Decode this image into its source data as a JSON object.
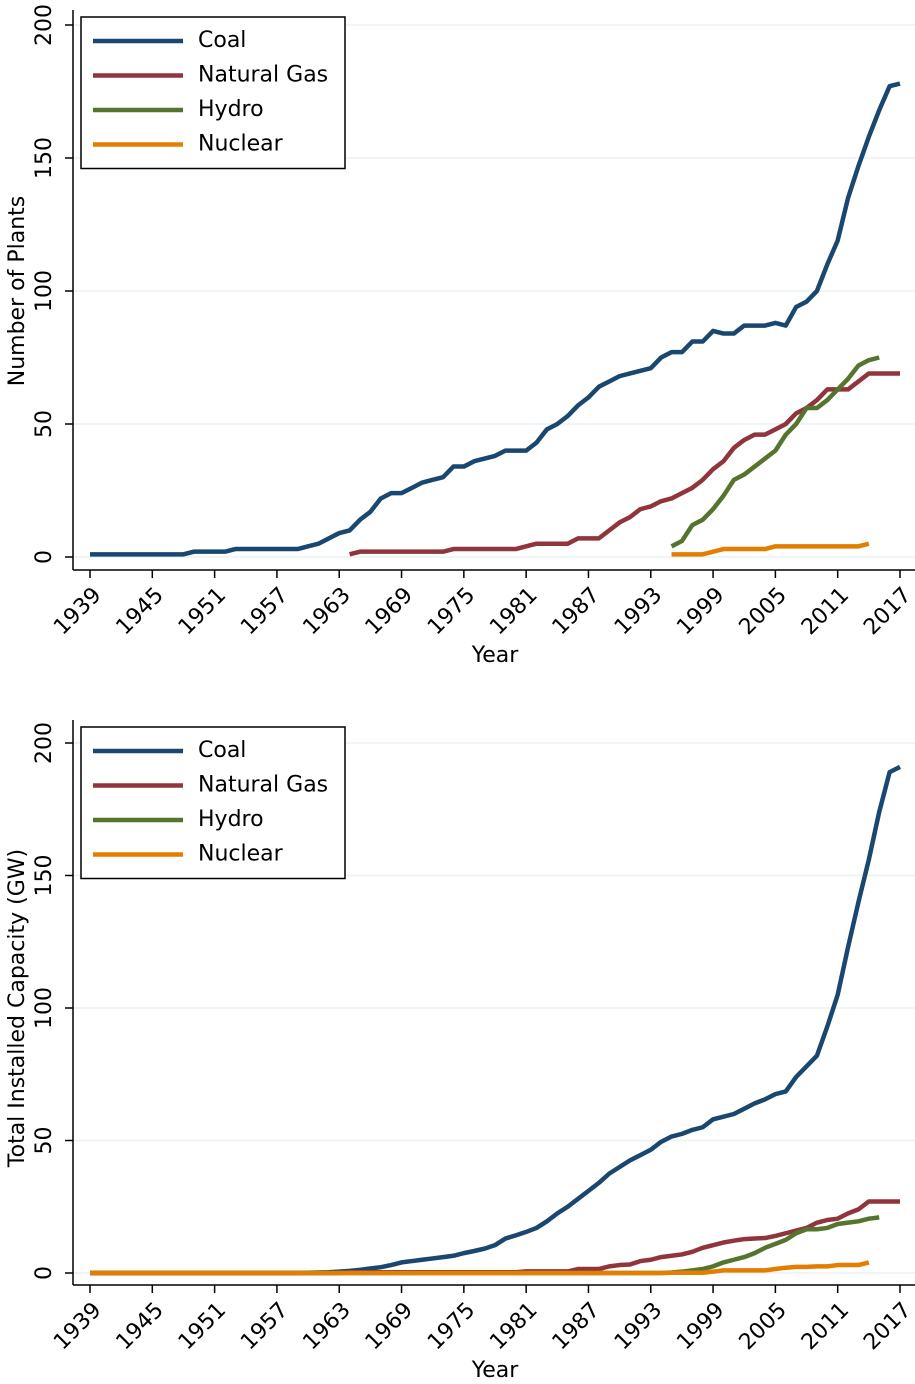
{
  "chart_data": [
    {
      "type": "line",
      "ylabel": "Number of Plants",
      "xlabel": "Year",
      "legend": "upper left",
      "grid": true,
      "xlim": [
        1939,
        2017
      ],
      "xticks": [
        1939,
        1945,
        1951,
        1957,
        1963,
        1969,
        1975,
        1981,
        1987,
        1993,
        1999,
        2005,
        2011,
        2017
      ],
      "ylim": [
        0,
        200
      ],
      "yticks": [
        0,
        50,
        100,
        150,
        200
      ],
      "x": [
        1939,
        1940,
        1941,
        1942,
        1943,
        1944,
        1945,
        1946,
        1947,
        1948,
        1949,
        1950,
        1951,
        1952,
        1953,
        1954,
        1955,
        1956,
        1957,
        1958,
        1959,
        1960,
        1961,
        1962,
        1963,
        1964,
        1965,
        1966,
        1967,
        1968,
        1969,
        1970,
        1971,
        1972,
        1973,
        1974,
        1975,
        1976,
        1977,
        1978,
        1979,
        1980,
        1981,
        1982,
        1983,
        1984,
        1985,
        1986,
        1987,
        1988,
        1989,
        1990,
        1991,
        1992,
        1993,
        1994,
        1995,
        1996,
        1997,
        1998,
        1999,
        2000,
        2001,
        2002,
        2003,
        2004,
        2005,
        2006,
        2007,
        2008,
        2009,
        2010,
        2011,
        2012,
        2013,
        2014,
        2015,
        2016,
        2017
      ],
      "series": [
        {
          "name": "Coal",
          "color": "#1a476f",
          "values": [
            1,
            1,
            1,
            1,
            1,
            1,
            1,
            1,
            1,
            1,
            2,
            2,
            2,
            2,
            3,
            3,
            3,
            3,
            3,
            3,
            3,
            4,
            5,
            7,
            9,
            10,
            14,
            17,
            22,
            24,
            24,
            26,
            28,
            29,
            30,
            34,
            34,
            36,
            37,
            38,
            40,
            40,
            40,
            43,
            48,
            50,
            53,
            57,
            60,
            64,
            66,
            68,
            69,
            70,
            71,
            75,
            77,
            77,
            81,
            81,
            85,
            84,
            84,
            87,
            87,
            87,
            88,
            87,
            94,
            96,
            100,
            110,
            119,
            135,
            147,
            158,
            168,
            177,
            178
          ]
        },
        {
          "name": "Natural Gas",
          "color": "#90353b",
          "values": [
            null,
            null,
            null,
            null,
            null,
            null,
            null,
            null,
            null,
            null,
            null,
            null,
            null,
            null,
            null,
            null,
            null,
            null,
            null,
            null,
            null,
            null,
            null,
            null,
            null,
            1,
            2,
            2,
            2,
            2,
            2,
            2,
            2,
            2,
            2,
            3,
            3,
            3,
            3,
            3,
            3,
            3,
            4,
            5,
            5,
            5,
            5,
            7,
            7,
            7,
            10,
            13,
            15,
            18,
            19,
            21,
            22,
            24,
            26,
            29,
            33,
            36,
            41,
            44,
            46,
            46,
            48,
            50,
            54,
            56,
            59,
            63,
            63,
            63,
            66,
            69,
            69,
            69,
            69
          ]
        },
        {
          "name": "Hydro",
          "color": "#55752f",
          "values": [
            null,
            null,
            null,
            null,
            null,
            null,
            null,
            null,
            null,
            null,
            null,
            null,
            null,
            null,
            null,
            null,
            null,
            null,
            null,
            null,
            null,
            null,
            null,
            null,
            null,
            null,
            null,
            null,
            null,
            null,
            null,
            null,
            null,
            null,
            null,
            null,
            null,
            null,
            null,
            null,
            null,
            null,
            null,
            null,
            null,
            null,
            null,
            null,
            null,
            null,
            null,
            null,
            null,
            null,
            null,
            null,
            4,
            6,
            12,
            14,
            18,
            23,
            29,
            31,
            34,
            37,
            40,
            46,
            50,
            56,
            56,
            59,
            63,
            67,
            72,
            74,
            75,
            null,
            null
          ]
        },
        {
          "name": "Nuclear",
          "color": "#e37e00",
          "values": [
            null,
            null,
            null,
            null,
            null,
            null,
            null,
            null,
            null,
            null,
            null,
            null,
            null,
            null,
            null,
            null,
            null,
            null,
            null,
            null,
            null,
            null,
            null,
            null,
            null,
            null,
            null,
            null,
            null,
            null,
            null,
            null,
            null,
            null,
            null,
            null,
            null,
            null,
            null,
            null,
            null,
            null,
            null,
            null,
            null,
            null,
            null,
            null,
            null,
            null,
            null,
            null,
            null,
            null,
            null,
            null,
            1,
            1,
            1,
            1,
            2,
            3,
            3,
            3,
            3,
            3,
            4,
            4,
            4,
            4,
            4,
            4,
            4,
            4,
            4,
            5,
            null,
            null,
            null
          ]
        }
      ]
    },
    {
      "type": "line",
      "ylabel": "Total Installed Capacity (GW)",
      "xlabel": "Year",
      "legend": "upper left",
      "grid": true,
      "xlim": [
        1939,
        2017
      ],
      "xticks": [
        1939,
        1945,
        1951,
        1957,
        1963,
        1969,
        1975,
        1981,
        1987,
        1993,
        1999,
        2005,
        2011,
        2017
      ],
      "ylim": [
        0,
        200
      ],
      "yticks": [
        0,
        50,
        100,
        150,
        200
      ],
      "x": [
        1939,
        1940,
        1941,
        1942,
        1943,
        1944,
        1945,
        1946,
        1947,
        1948,
        1949,
        1950,
        1951,
        1952,
        1953,
        1954,
        1955,
        1956,
        1957,
        1958,
        1959,
        1960,
        1961,
        1962,
        1963,
        1964,
        1965,
        1966,
        1967,
        1968,
        1969,
        1970,
        1971,
        1972,
        1973,
        1974,
        1975,
        1976,
        1977,
        1978,
        1979,
        1980,
        1981,
        1982,
        1983,
        1984,
        1985,
        1986,
        1987,
        1988,
        1989,
        1990,
        1991,
        1992,
        1993,
        1994,
        1995,
        1996,
        1997,
        1998,
        1999,
        2000,
        2001,
        2002,
        2003,
        2004,
        2005,
        2006,
        2007,
        2008,
        2009,
        2010,
        2011,
        2012,
        2013,
        2014,
        2015,
        2016,
        2017
      ],
      "series": [
        {
          "name": "Coal",
          "color": "#1a476f",
          "values": [
            0,
            0,
            0,
            0,
            0,
            0,
            0,
            0,
            0,
            0,
            0,
            0,
            0,
            0,
            0,
            0,
            0,
            0,
            0,
            0,
            0,
            0.1,
            0.2,
            0.3,
            0.5,
            0.8,
            1.2,
            1.7,
            2.2,
            3,
            4,
            4.5,
            5,
            5.5,
            6,
            6.5,
            7.5,
            8.3,
            9.2,
            10.5,
            13,
            14.2,
            15.5,
            17,
            19.5,
            22.5,
            25,
            28,
            31,
            34,
            37.5,
            40,
            42.5,
            44.5,
            46.5,
            49.5,
            51.5,
            52.5,
            54,
            55,
            58,
            59,
            60,
            62,
            64,
            65.5,
            67.5,
            68.5,
            74,
            78,
            82,
            93,
            105,
            123,
            140,
            156,
            174,
            189,
            191
          ]
        },
        {
          "name": "Natural Gas",
          "color": "#90353b",
          "values": [
            0,
            0,
            0,
            0,
            0,
            0,
            0,
            0,
            0,
            0,
            0,
            0,
            0,
            0,
            0,
            0,
            0,
            0,
            0,
            0,
            0,
            0,
            0,
            0,
            0,
            0.3,
            0.3,
            0.3,
            0.3,
            0.3,
            0.3,
            0.3,
            0.3,
            0.3,
            0.3,
            0.3,
            0.3,
            0.3,
            0.3,
            0.3,
            0.3,
            0.3,
            0.6,
            0.6,
            0.6,
            0.6,
            0.6,
            1.5,
            1.5,
            1.5,
            2.5,
            3,
            3.2,
            4.5,
            5,
            6,
            6.5,
            7,
            8,
            9.5,
            10.5,
            11.5,
            12.2,
            12.8,
            13,
            13.2,
            14,
            15,
            16,
            17,
            19,
            20,
            20.5,
            22.5,
            24,
            27,
            27,
            27,
            27
          ]
        },
        {
          "name": "Hydro",
          "color": "#55752f",
          "values": [
            0,
            0,
            0,
            0,
            0,
            0,
            0,
            0,
            0,
            0,
            0,
            0,
            0,
            0,
            0,
            0,
            0,
            0,
            0,
            0,
            0,
            0,
            0,
            0,
            0,
            0,
            0,
            0,
            0,
            0,
            0,
            0,
            0,
            0,
            0,
            0,
            0,
            0,
            0,
            0,
            0,
            0,
            0,
            0,
            0,
            0,
            0,
            0,
            0,
            0,
            0,
            0,
            0,
            0,
            0,
            0,
            0.2,
            0.5,
            1,
            1.5,
            2.5,
            4,
            5,
            6,
            7.5,
            9.5,
            11,
            12.5,
            15,
            16.5,
            16.5,
            17,
            18.5,
            19,
            19.5,
            20.5,
            21,
            null,
            null
          ]
        },
        {
          "name": "Nuclear",
          "color": "#e37e00",
          "values": [
            0,
            0,
            0,
            0,
            0,
            0,
            0,
            0,
            0,
            0,
            0,
            0,
            0,
            0,
            0,
            0,
            0,
            0,
            0,
            0,
            0,
            0,
            0,
            0,
            0,
            0,
            0,
            0,
            0,
            0,
            0,
            0,
            0,
            0,
            0,
            0,
            0,
            0,
            0,
            0,
            0,
            0,
            0,
            0,
            0,
            0,
            0,
            0,
            0,
            0,
            0,
            0,
            0,
            0,
            0,
            0,
            0.1,
            0.1,
            0.1,
            0.1,
            0.5,
            1,
            1,
            1,
            1,
            1,
            1.5,
            2,
            2.3,
            2.3,
            2.5,
            2.5,
            3,
            3,
            3,
            4,
            null,
            null,
            null
          ]
        }
      ]
    }
  ]
}
